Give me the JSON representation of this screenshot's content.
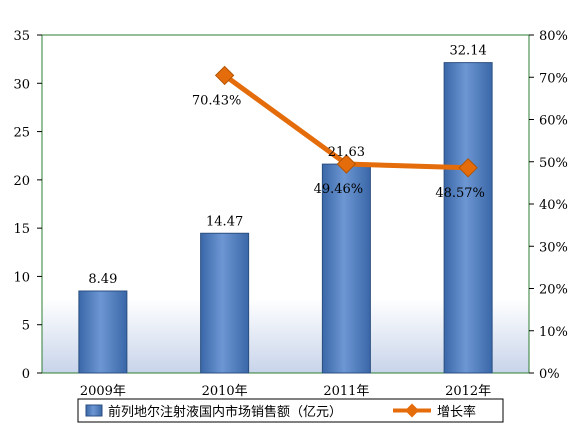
{
  "chart_data": {
    "type": "bar",
    "categories": [
      "2009年",
      "2010年",
      "2011年",
      "2012年"
    ],
    "series": [
      {
        "name": "前列地尔注射液国内市场销售额（亿元）",
        "type": "bar",
        "axis": "left",
        "values": [
          8.49,
          14.47,
          21.63,
          32.14
        ],
        "labels": [
          "8.49",
          "14.47",
          "21.63",
          "32.14"
        ],
        "color": "#4F81BD"
      },
      {
        "name": "增长率",
        "type": "line",
        "axis": "right",
        "values": [
          null,
          70.43,
          49.46,
          48.57
        ],
        "labels": [
          "",
          "70.43%",
          "49.46%",
          "48.57%"
        ],
        "color": "#E46C0A"
      }
    ],
    "y_left": {
      "min": 0,
      "max": 35,
      "step": 5,
      "ticks": [
        "0",
        "5",
        "10",
        "15",
        "20",
        "25",
        "30",
        "35"
      ]
    },
    "y_right": {
      "min": 0,
      "max": 80,
      "step": 10,
      "ticks": [
        "0%",
        "10%",
        "20%",
        "30%",
        "40%",
        "50%",
        "60%",
        "70%",
        "80%"
      ]
    },
    "grid": false,
    "legend": "bottom",
    "plot_border_color": "#2E7D32"
  }
}
